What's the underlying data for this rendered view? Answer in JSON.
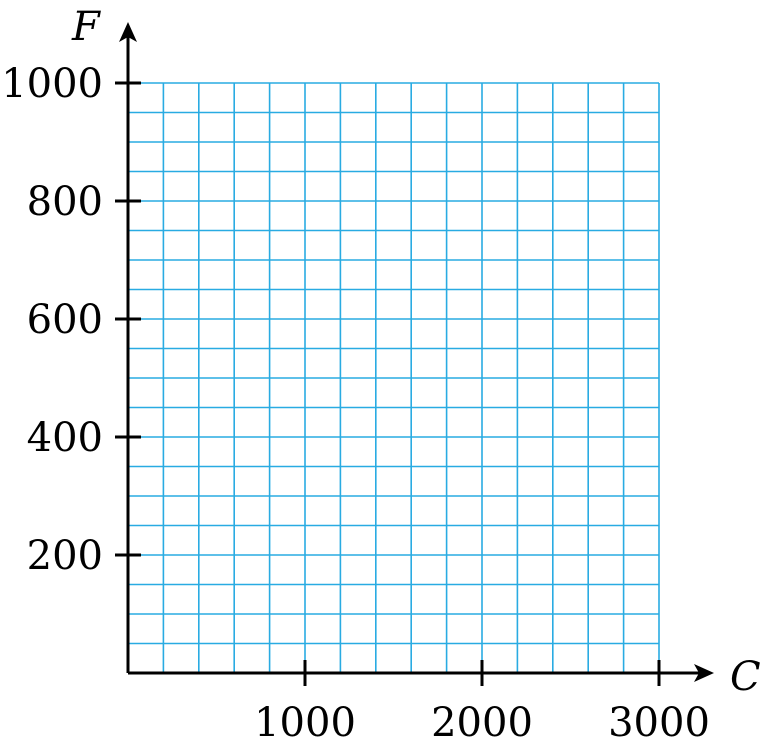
{
  "chart_data": {
    "type": "scatter",
    "title": "",
    "xlabel": "C",
    "ylabel": "F",
    "xlim": [
      0,
      3000
    ],
    "ylim": [
      0,
      1000
    ],
    "x_grid_step": 200,
    "y_grid_step": 50,
    "x_ticks": [
      1000,
      2000,
      3000
    ],
    "y_ticks": [
      200,
      400,
      600,
      800,
      1000
    ],
    "x_tick_labels": [
      "1000",
      "2000",
      "3000"
    ],
    "y_tick_labels": [
      "200",
      "400",
      "600",
      "800",
      "1000"
    ],
    "grid": true,
    "grid_color": "#29abe2",
    "axis_color": "#000000",
    "series": []
  }
}
